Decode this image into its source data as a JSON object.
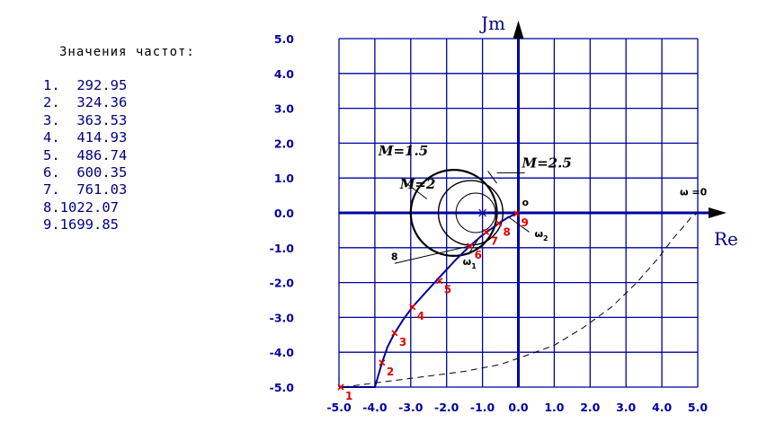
{
  "freq_panel": {
    "title": "Значения частот:",
    "items": [
      "1.  292.95",
      "2.  324.36",
      "3.  363.53",
      "4.  414.93",
      "5.  486.74",
      "6.  600.35",
      "7.  761.03",
      "8.1022.07",
      "9.1699.85"
    ]
  },
  "chart_data": {
    "type": "line",
    "xlabel": "Re",
    "ylabel": "Jm",
    "xlim": [
      -5.0,
      5.0
    ],
    "ylim": [
      -5.0,
      5.0
    ],
    "x_ticks": [
      -5,
      -4,
      -3,
      -2,
      -1,
      0,
      1,
      2,
      3,
      4,
      5
    ],
    "y_ticks": [
      -5,
      -4,
      -3,
      -2,
      -1,
      0,
      1,
      2,
      3,
      4,
      5
    ],
    "x_tick_labels": [
      "-5.0",
      "-4.0",
      "-3.0",
      "-2.0",
      "-1.0",
      "0.0",
      "1.0",
      "2.0",
      "3.0",
      "4.0",
      "5.0"
    ],
    "y_tick_labels": [
      "-5.0",
      "-4.0",
      "-3.0",
      "-2.0",
      "-1.0",
      "0.0",
      "1.0",
      "2.0",
      "3.0",
      "4.0",
      "5.0"
    ],
    "grid": true,
    "colors": {
      "grid": "#0000a0",
      "curve": "#0000a0",
      "marker": "#e00000",
      "circles": "#000000",
      "dashed": "#000000"
    },
    "series": [
      {
        "kind": "solid",
        "x": [
          -4.95,
          -4.0,
          -3.8,
          -3.65,
          -3.45,
          -3.2,
          -2.95,
          -2.6,
          -2.2,
          -1.75,
          -1.35,
          -1.05,
          -0.75,
          -0.5,
          -0.3,
          -0.1,
          0.0
        ],
        "y": [
          -5.0,
          -5.0,
          -4.3,
          -3.85,
          -3.45,
          -3.05,
          -2.7,
          -2.3,
          -1.85,
          -1.35,
          -0.95,
          -0.68,
          -0.45,
          -0.27,
          -0.14,
          -0.04,
          0.0
        ]
      },
      {
        "kind": "dashed",
        "x": [
          -4.9,
          -3.0,
          -1.5,
          -0.5,
          0.2,
          1.0,
          1.8,
          2.6,
          3.3,
          3.9,
          4.3,
          4.6,
          4.8,
          5.0
        ],
        "y": [
          -5.0,
          -4.75,
          -4.55,
          -4.35,
          -4.1,
          -3.8,
          -3.3,
          -2.7,
          -2.0,
          -1.3,
          -0.75,
          -0.4,
          -0.15,
          0.0
        ]
      }
    ],
    "markers": [
      {
        "label": "1",
        "x": -4.95,
        "y": -5.0
      },
      {
        "label": "2",
        "x": -3.8,
        "y": -4.3
      },
      {
        "label": "3",
        "x": -3.45,
        "y": -3.45
      },
      {
        "label": "4",
        "x": -2.95,
        "y": -2.7
      },
      {
        "label": "5",
        "x": -2.2,
        "y": -1.95
      },
      {
        "label": "6",
        "x": -1.35,
        "y": -0.95
      },
      {
        "label": "7",
        "x": -0.9,
        "y": -0.55
      },
      {
        "label": "8",
        "x": -0.55,
        "y": -0.3
      },
      {
        "label": "9",
        "x": -0.05,
        "y": -0.02
      }
    ],
    "m_circles": [
      {
        "label": "M=1.5",
        "center": [
          -1.8,
          0.0
        ],
        "radius": 1.2
      },
      {
        "label": "M=2",
        "center": [
          -1.33,
          0.0
        ],
        "radius": 0.9
      },
      {
        "label": "M=2.5",
        "center": [
          -1.19,
          0.0
        ],
        "radius": 0.55
      }
    ],
    "circle_center": [
      -1.0,
      0.0
    ],
    "annotations": [
      {
        "text": "M=1.5",
        "x": -3.9,
        "y": 1.65
      },
      {
        "text": "M=2",
        "x": -3.3,
        "y": 0.7
      },
      {
        "text": "M=2.5",
        "x": 0.1,
        "y": 1.3
      },
      {
        "text": "ω =0",
        "x": 4.5,
        "y": 0.5
      },
      {
        "text": "o",
        "x": 0.1,
        "y": 0.2
      },
      {
        "text": "8",
        "x": -3.55,
        "y": -1.35
      },
      {
        "text": "ω1",
        "x": -1.55,
        "y": -1.5
      },
      {
        "text": "ω2",
        "x": 0.45,
        "y": -0.7
      }
    ]
  }
}
